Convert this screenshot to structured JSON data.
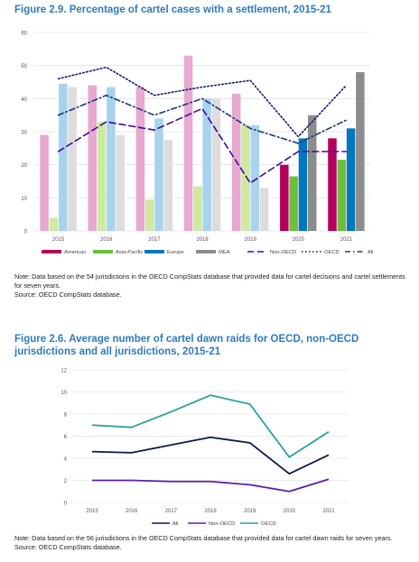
{
  "figures": [
    {
      "title": "Figure 2.9. Percentage of cartel cases with a settlement, 2015-21",
      "note": "Note: Data based on the 54 jurisdictions in the OECD CompStats database that provided data for cartel decisions and cartel settlements for seven years.",
      "source": "Source: OECD CompStats database."
    },
    {
      "title": "Figure 2.6. Average number of cartel dawn raids for OECD, non-OECD jurisdictions and all jurisdictions, 2015-21",
      "note": "Note: Data based on the 56 jurisdictions in the OECD CompStats database that provided data for cartel dawn raids for seven years.",
      "source": "Source: OECD CompStats database."
    }
  ],
  "chart_data": [
    {
      "type": "bar",
      "categories": [
        "2015",
        "2016",
        "2017",
        "2018",
        "2019",
        "2020",
        "2021"
      ],
      "ylim": [
        0,
        60
      ],
      "yticks": [
        0,
        10,
        20,
        30,
        40,
        50,
        60
      ],
      "grid": true,
      "legend_position": "bottom",
      "bar_series": [
        {
          "name": "Americas",
          "values": [
            29,
            44,
            43.5,
            53,
            41.5,
            20,
            28
          ],
          "color": "#b5005b",
          "faded_color": "#e8a8cf"
        },
        {
          "name": "Asia-Pacific",
          "values": [
            4,
            33,
            9.5,
            13.5,
            32,
            16.5,
            21.5
          ],
          "color": "#6cbf3c",
          "faded_color": "#cdeaa0"
        },
        {
          "name": "Europe",
          "values": [
            44.5,
            43.5,
            34,
            40,
            32,
            28,
            31
          ],
          "color": "#0077bf",
          "faded_color": "#a8d3ee"
        },
        {
          "name": "MEA",
          "values": [
            43.5,
            29,
            27.5,
            40,
            13,
            35,
            48
          ],
          "color": "#8c8c8c",
          "faded_color": "#dddddd"
        }
      ],
      "line_series": [
        {
          "name": "Non-OECD",
          "values": [
            24,
            33,
            30.5,
            37,
            14.5,
            24,
            24
          ],
          "color": "#3a0a9e",
          "dash": "long-dash"
        },
        {
          "name": "OECD",
          "values": [
            46,
            49.5,
            41,
            43.5,
            45.5,
            28.5,
            44
          ],
          "color": "#1a1a6e",
          "dash": "dotted"
        },
        {
          "name": "All",
          "values": [
            35,
            41,
            35,
            40,
            31,
            26.5,
            33.5
          ],
          "color": "#1a3a7a",
          "dash": "dash-dot"
        }
      ]
    },
    {
      "type": "line",
      "categories": [
        "2015",
        "2016",
        "2017",
        "2018",
        "2019",
        "2020",
        "2021"
      ],
      "ylim": [
        0,
        12
      ],
      "yticks": [
        0,
        2,
        4,
        6,
        8,
        10,
        12
      ],
      "grid": true,
      "legend_position": "bottom",
      "series": [
        {
          "name": "All",
          "values": [
            4.6,
            4.5,
            5.2,
            5.9,
            5.4,
            2.6,
            4.3
          ],
          "color": "#0d1a4a"
        },
        {
          "name": "Non-OECD",
          "values": [
            2.0,
            2.0,
            1.9,
            1.9,
            1.6,
            1.0,
            2.1
          ],
          "color": "#5b1fb0"
        },
        {
          "name": "OECD",
          "values": [
            7.0,
            6.8,
            8.2,
            9.7,
            8.9,
            4.1,
            6.4
          ],
          "color": "#2aa198"
        }
      ]
    }
  ]
}
